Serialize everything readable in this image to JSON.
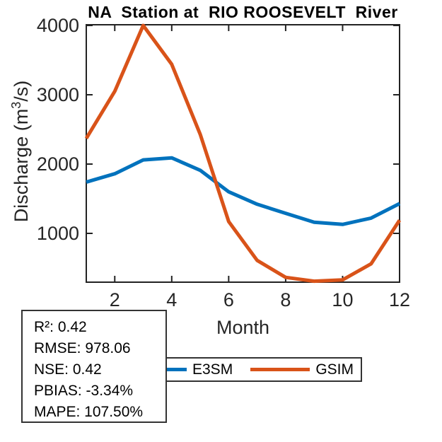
{
  "title": "NA  Station at  RIO ROOSEVELT  River",
  "chart_data": {
    "type": "line",
    "x": [
      1,
      2,
      3,
      4,
      5,
      6,
      7,
      8,
      9,
      10,
      11,
      12
    ],
    "series": [
      {
        "name": "E3SM",
        "color": "#0072BD",
        "values": [
          1740,
          1860,
          2060,
          2090,
          1910,
          1600,
          1420,
          1290,
          1160,
          1130,
          1220,
          1430
        ]
      },
      {
        "name": "GSIM",
        "color": "#D95319",
        "values": [
          2370,
          3050,
          4000,
          3440,
          2430,
          1170,
          610,
          365,
          310,
          330,
          560,
          1190
        ]
      }
    ],
    "xlabel": "Month",
    "ylabel": "Discharge (m³/s)",
    "ylabel_parts": {
      "prefix": "Discharge (m",
      "sup": "3",
      "suffix": "/s)"
    },
    "xticks": [
      2,
      4,
      6,
      8,
      10,
      12
    ],
    "yticks": [
      1000,
      2000,
      3000,
      4000
    ],
    "xlim": [
      1,
      12
    ],
    "ylim": [
      300,
      4010
    ],
    "grid": false,
    "legend_position": "below-outside"
  },
  "legend": {
    "items": [
      {
        "label": "E3SM",
        "color": "#0072BD"
      },
      {
        "label": "GSIM",
        "color": "#D95319"
      }
    ]
  },
  "stats_box": {
    "lines": [
      "R²: 0.42",
      "RMSE: 978.06",
      "NSE: 0.42",
      "PBIAS: -3.34%",
      "MAPE: 107.50%"
    ]
  },
  "axis_color": "#262626"
}
